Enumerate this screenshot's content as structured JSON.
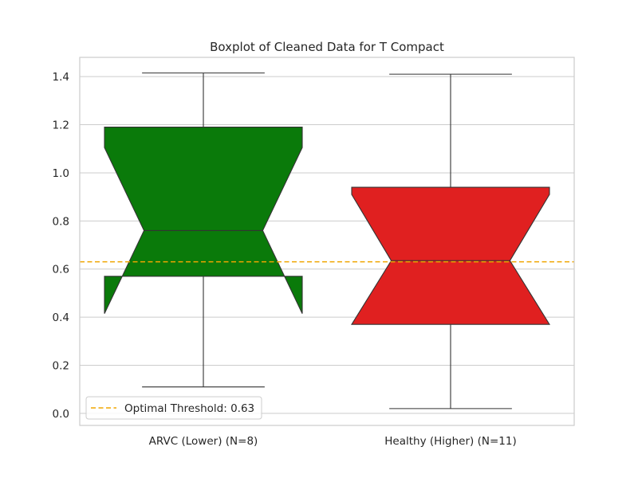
{
  "chart_data": {
    "type": "boxplot",
    "title": "Boxplot of Cleaned Data for T Compact",
    "xlabel": "",
    "ylabel": "",
    "ylim": [
      -0.05,
      1.48
    ],
    "yticks": [
      0.0,
      0.2,
      0.4,
      0.6,
      0.8,
      1.0,
      1.2,
      1.4
    ],
    "ytick_labels": [
      "0.0",
      "0.2",
      "0.4",
      "0.6",
      "0.8",
      "1.0",
      "1.2",
      "1.4"
    ],
    "notched": true,
    "grid": "horizontal",
    "categories": [
      "ARVC (Lower) (N=8)",
      "Healthy (Higher) (N=11)"
    ],
    "boxes": [
      {
        "whisker_low": 0.11,
        "q1": 0.57,
        "median": 0.76,
        "q3": 1.19,
        "whisker_high": 1.415,
        "notch_low": 0.415,
        "notch_high": 1.105,
        "color": "#0a7a0a"
      },
      {
        "whisker_low": 0.02,
        "q1": 0.37,
        "median": 0.635,
        "q3": 0.94,
        "whisker_high": 1.41,
        "notch_low": 0.37,
        "notch_high": 0.91,
        "color": "#e02020"
      }
    ],
    "reference_lines": [
      {
        "value": 0.63,
        "label": "Optimal Threshold: 0.63",
        "color": "#f0a500",
        "style": "dashed"
      }
    ],
    "legend_position": "lower-left"
  }
}
